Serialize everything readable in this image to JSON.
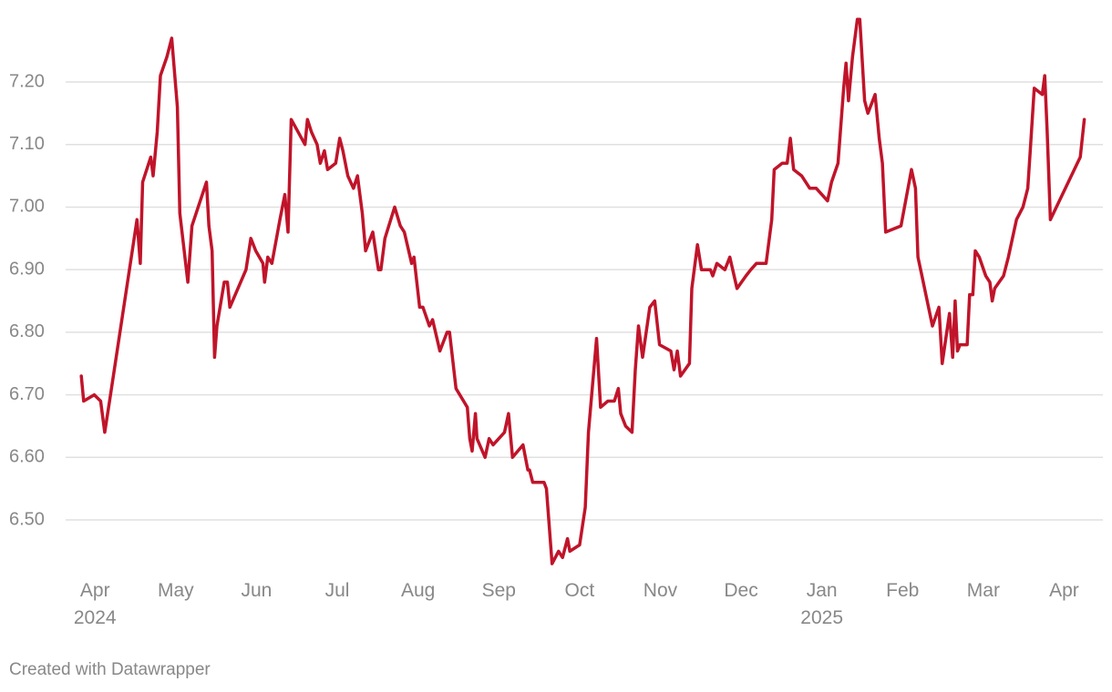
{
  "chart_data": {
    "type": "line",
    "source": "Created with Datawrapper",
    "color": "#c0142a",
    "grid": true,
    "x": [
      -0.17,
      -0.14,
      -0.01,
      0.07,
      0.12,
      0.18,
      0.52,
      0.56,
      0.59,
      0.69,
      0.72,
      0.77,
      0.81,
      0.89,
      0.95,
      1.02,
      1.05,
      1.15,
      1.2,
      1.38,
      1.41,
      1.45,
      1.48,
      1.51,
      1.6,
      1.64,
      1.67,
      1.87,
      1.93,
      1.99,
      2.08,
      2.1,
      2.14,
      2.19,
      2.29,
      2.35,
      2.39,
      2.43,
      2.6,
      2.63,
      2.68,
      2.75,
      2.79,
      2.84,
      2.88,
      2.98,
      3.03,
      3.07,
      3.13,
      3.2,
      3.25,
      3.31,
      3.35,
      3.44,
      3.51,
      3.54,
      3.59,
      3.71,
      3.78,
      3.83,
      3.92,
      3.95,
      4.02,
      4.06,
      4.14,
      4.18,
      4.27,
      4.36,
      4.39,
      4.47,
      4.61,
      4.64,
      4.67,
      4.71,
      4.73,
      4.83,
      4.88,
      4.93,
      5.07,
      5.12,
      5.17,
      5.3,
      5.36,
      5.38,
      5.42,
      5.56,
      5.59,
      5.66,
      5.74,
      5.79,
      5.85,
      5.88,
      6.0,
      6.07,
      6.11,
      6.21,
      6.26,
      6.35,
      6.43,
      6.48,
      6.51,
      6.57,
      6.65,
      6.69,
      6.73,
      6.78,
      6.87,
      6.93,
      6.99,
      7.13,
      7.17,
      7.21,
      7.25,
      7.36,
      7.39,
      7.46,
      7.51,
      7.62,
      7.65,
      7.7,
      7.8,
      7.86,
      7.95,
      8.06,
      8.12,
      8.19,
      8.31,
      8.38,
      8.41,
      8.51,
      8.57,
      8.61,
      8.65,
      8.75,
      8.85,
      8.93,
      9.07,
      9.12,
      9.2,
      9.27,
      9.3,
      9.33,
      9.38,
      9.44,
      9.47,
      9.53,
      9.57,
      9.66,
      9.71,
      9.75,
      9.79,
      9.98,
      10.11,
      10.16,
      10.19,
      10.24,
      10.37,
      10.45,
      10.49,
      10.58,
      10.62,
      10.65,
      10.68,
      10.71,
      10.8,
      10.83,
      10.87,
      10.9,
      10.95,
      11.03,
      11.08,
      11.11,
      11.14,
      11.25,
      11.31,
      11.41,
      11.49,
      11.55,
      11.58,
      11.63,
      11.73,
      11.76,
      11.79,
      11.83,
      12.2,
      12.25
    ],
    "values": [
      6.73,
      6.69,
      6.7,
      6.69,
      6.64,
      6.69,
      6.98,
      6.91,
      7.04,
      7.08,
      7.05,
      7.12,
      7.21,
      7.24,
      7.27,
      7.16,
      6.99,
      6.88,
      6.97,
      7.04,
      6.97,
      6.93,
      6.76,
      6.81,
      6.88,
      6.88,
      6.84,
      6.9,
      6.95,
      6.93,
      6.91,
      6.88,
      6.92,
      6.91,
      6.98,
      7.02,
      6.96,
      7.14,
      7.1,
      7.14,
      7.12,
      7.1,
      7.07,
      7.09,
      7.06,
      7.07,
      7.11,
      7.09,
      7.05,
      7.03,
      7.05,
      6.99,
      6.93,
      6.96,
      6.9,
      6.9,
      6.95,
      7.0,
      6.97,
      6.96,
      6.91,
      6.92,
      6.84,
      6.84,
      6.81,
      6.82,
      6.77,
      6.8,
      6.8,
      6.71,
      6.68,
      6.63,
      6.61,
      6.67,
      6.63,
      6.6,
      6.63,
      6.62,
      6.64,
      6.67,
      6.6,
      6.62,
      6.58,
      6.58,
      6.56,
      6.56,
      6.55,
      6.43,
      6.45,
      6.44,
      6.47,
      6.45,
      6.46,
      6.52,
      6.64,
      6.79,
      6.68,
      6.69,
      6.69,
      6.71,
      6.67,
      6.65,
      6.64,
      6.74,
      6.81,
      6.76,
      6.84,
      6.85,
      6.78,
      6.77,
      6.74,
      6.77,
      6.73,
      6.75,
      6.87,
      6.94,
      6.9,
      6.9,
      6.89,
      6.91,
      6.9,
      6.92,
      6.87,
      6.89,
      6.9,
      6.91,
      6.91,
      6.98,
      7.06,
      7.07,
      7.07,
      7.11,
      7.06,
      7.05,
      7.03,
      7.03,
      7.01,
      7.04,
      7.07,
      7.19,
      7.23,
      7.17,
      7.24,
      7.3,
      7.3,
      7.17,
      7.15,
      7.18,
      7.11,
      7.07,
      6.96,
      6.97,
      7.06,
      7.03,
      6.92,
      6.89,
      6.81,
      6.84,
      6.75,
      6.83,
      6.76,
      6.85,
      6.77,
      6.78,
      6.78,
      6.86,
      6.86,
      6.93,
      6.92,
      6.89,
      6.88,
      6.85,
      6.87,
      6.89,
      6.92,
      6.98,
      7.0,
      7.03,
      7.09,
      7.19,
      7.18,
      7.21,
      7.12,
      6.98,
      7.08,
      7.14
    ],
    "xlim": [
      -0.33,
      12.48
    ],
    "xticks": [
      {
        "value": 0,
        "label": "Apr\n2024"
      },
      {
        "value": 1,
        "label": "May"
      },
      {
        "value": 2,
        "label": "Jun"
      },
      {
        "value": 3,
        "label": "Jul"
      },
      {
        "value": 4,
        "label": "Aug"
      },
      {
        "value": 5,
        "label": "Sep"
      },
      {
        "value": 6,
        "label": "Oct"
      },
      {
        "value": 7,
        "label": "Nov"
      },
      {
        "value": 8,
        "label": "Dec"
      },
      {
        "value": 9,
        "label": "Jan\n2025"
      },
      {
        "value": 10,
        "label": "Feb"
      },
      {
        "value": 11,
        "label": "Mar"
      },
      {
        "value": 12,
        "label": "Apr"
      }
    ],
    "ylim": [
      6.42,
      7.3
    ],
    "yticks": [
      {
        "value": 6.5,
        "label": "6.50"
      },
      {
        "value": 6.6,
        "label": "6.60"
      },
      {
        "value": 6.7,
        "label": "6.70"
      },
      {
        "value": 6.8,
        "label": "6.80"
      },
      {
        "value": 6.9,
        "label": "6.90"
      },
      {
        "value": 7.0,
        "label": "7.00"
      },
      {
        "value": 7.1,
        "label": "7.10"
      },
      {
        "value": 7.2,
        "label": "7.20"
      }
    ]
  }
}
